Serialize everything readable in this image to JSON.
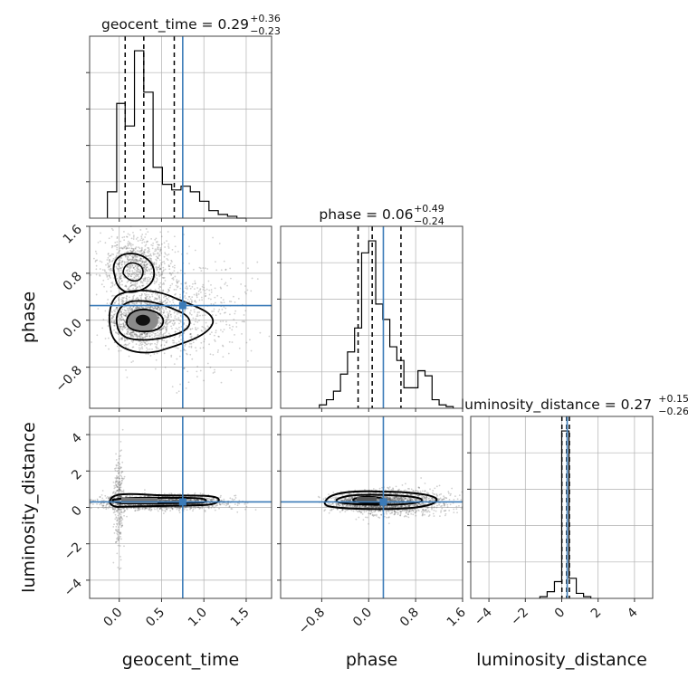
{
  "chart_data": {
    "type": "corner",
    "parameters": [
      "geocent_time",
      "phase",
      "luminosity_distance"
    ],
    "panels": {
      "geocent_time": {
        "title": {
          "name": "geocent_time",
          "median": "0.29",
          "plus": "+0.36",
          "minus": "−0.23"
        },
        "xlim": [
          -0.35,
          1.8
        ],
        "xticks": [
          0.0,
          0.5,
          1.0,
          1.5
        ],
        "xticklabels": [
          "0.0",
          "0.5",
          "1.0",
          "1.5"
        ],
        "injection": 0.75,
        "quantiles": [
          0.07,
          0.29,
          0.65
        ],
        "histogram": {
          "bins": [
            -0.14,
            -0.03,
            0.07,
            0.18,
            0.29,
            0.4,
            0.51,
            0.62,
            0.73,
            0.84,
            0.95,
            1.06,
            1.17,
            1.28,
            1.39,
            1.5
          ],
          "counts": [
            0.14,
            0.61,
            0.49,
            0.89,
            0.67,
            0.27,
            0.18,
            0.15,
            0.17,
            0.14,
            0.09,
            0.04,
            0.02,
            0.01,
            0.0
          ]
        }
      },
      "phase": {
        "title": {
          "name": "phase",
          "median": "0.06",
          "plus": "+0.49",
          "minus": "−0.24"
        },
        "xlim": [
          -1.5,
          1.6
        ],
        "xticks": [
          -0.8,
          0.0,
          0.8,
          1.6
        ],
        "xticklabels": [
          "−0.8",
          "0.0",
          "0.8",
          "1.6"
        ],
        "yticks": [
          -0.8,
          0.0,
          0.8,
          1.6
        ],
        "yticklabels": [
          "−0.8",
          "0.0",
          "0.8",
          "1.6"
        ],
        "injection": 0.25,
        "quantiles": [
          -0.18,
          0.06,
          0.55
        ],
        "histogram": {
          "bins": [
            -0.84,
            -0.72,
            -0.6,
            -0.48,
            -0.36,
            -0.24,
            -0.12,
            0.0,
            0.12,
            0.24,
            0.36,
            0.48,
            0.6,
            0.72,
            0.84,
            0.96,
            1.08,
            1.2,
            1.32,
            1.44
          ],
          "counts": [
            0.02,
            0.05,
            0.1,
            0.2,
            0.33,
            0.47,
            0.91,
            0.98,
            0.61,
            0.52,
            0.36,
            0.28,
            0.12,
            0.12,
            0.22,
            0.19,
            0.05,
            0.02,
            0.01
          ]
        }
      },
      "luminosity_distance": {
        "title": {
          "name": "luminosity_distance",
          "median": "0.27",
          "plus": "+0.15",
          "minus": "−0.26"
        },
        "xlim": [
          -5.0,
          5.0
        ],
        "xticks": [
          -4,
          -2,
          0,
          2,
          4
        ],
        "xticklabels": [
          "−4",
          "−2",
          "0",
          "2",
          "4"
        ],
        "yticks": [
          -4,
          -2,
          0,
          2,
          4
        ],
        "yticklabels": [
          "−4",
          "−2",
          "0",
          "2",
          "4"
        ],
        "injection": 0.3,
        "quantiles": [
          0.01,
          0.27,
          0.42
        ],
        "histogram": {
          "bins": [
            -1.2,
            -0.8,
            -0.4,
            0.0,
            0.4,
            0.8,
            1.2,
            1.6
          ],
          "counts": [
            0.01,
            0.04,
            0.1,
            1.0,
            0.12,
            0.03,
            0.01
          ]
        }
      }
    },
    "axis_labels": {
      "x": [
        "geocent_time",
        "phase",
        "luminosity_distance"
      ],
      "y": [
        "phase",
        "luminosity_distance"
      ]
    },
    "injection_color": "#3b7bb8",
    "grid": true
  }
}
